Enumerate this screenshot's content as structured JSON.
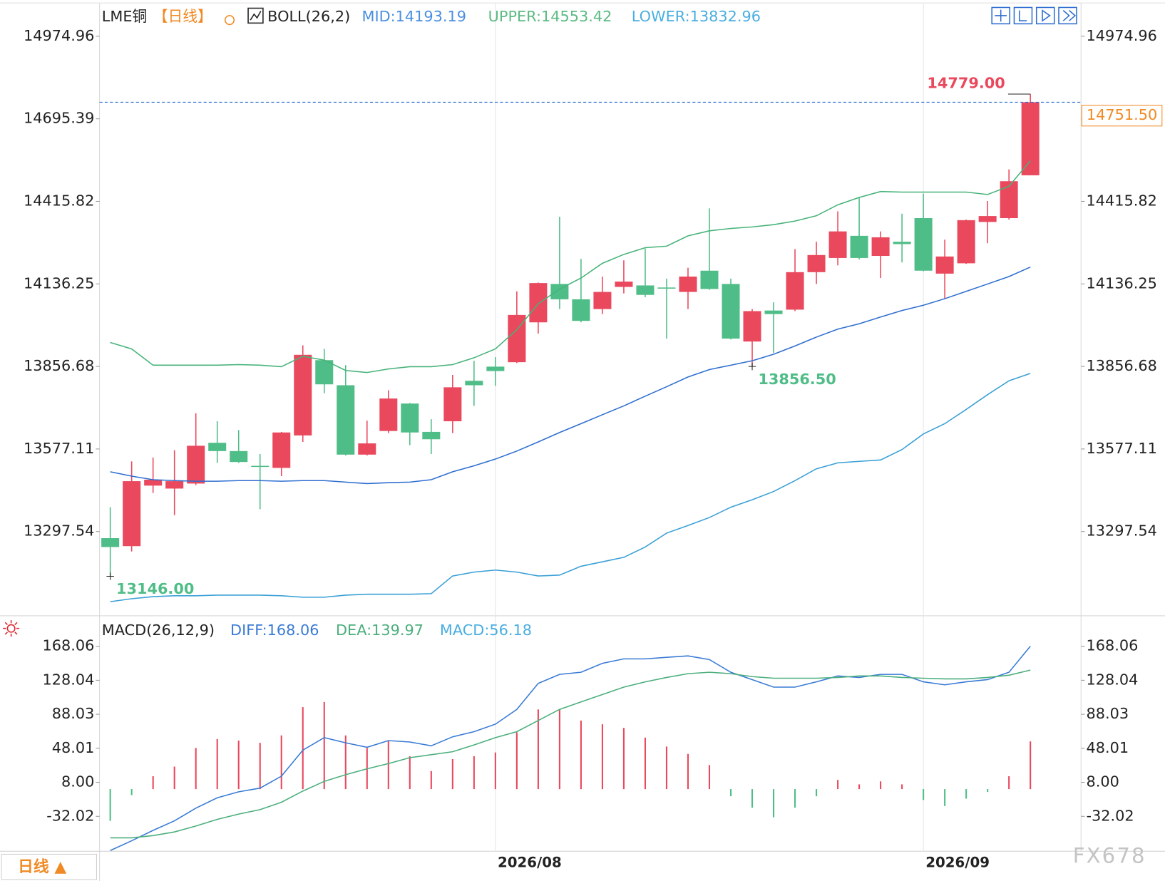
{
  "chart_data": [
    {
      "type": "candlestick",
      "title": "LME铜",
      "period": "【日线】",
      "indicator": "BOLL(26,2)",
      "categories": [
        null,
        null,
        null,
        null,
        null,
        null,
        null,
        null,
        null,
        null,
        null,
        null,
        null,
        null,
        null,
        null,
        null,
        null,
        "2026/08",
        null,
        null,
        null,
        null,
        null,
        null,
        null,
        null,
        null,
        null,
        null,
        null,
        null,
        null,
        null,
        null,
        null,
        null,
        null,
        "2026/09",
        null,
        null,
        null,
        null,
        null
      ],
      "open": [
        13275,
        13248,
        13453,
        13443,
        13460,
        13598,
        13570,
        13520,
        13513,
        13623,
        13878,
        13793,
        13558,
        13638,
        13731,
        13635,
        13671,
        13808,
        13856,
        13871,
        14006,
        14136,
        14084,
        14051,
        14126,
        14131,
        14124,
        14109,
        14181,
        14136,
        13941,
        14046,
        14049,
        14176,
        14224,
        14299,
        14231,
        14279,
        14359,
        14171,
        14206,
        14346,
        14359,
        14504
      ],
      "close": [
        13245,
        13468,
        13473,
        13468,
        13588,
        13570,
        13533,
        13518,
        13633,
        13896,
        13796,
        13558,
        13596,
        13748,
        13633,
        13610,
        13786,
        13793,
        13841,
        14031,
        14139,
        14084,
        14011,
        14109,
        14144,
        14099,
        14121,
        14161,
        14119,
        13951,
        14044,
        14034,
        14176,
        14234,
        14314,
        14224,
        14294,
        14271,
        14181,
        14229,
        14352,
        14366,
        14484,
        14751.5
      ],
      "high": [
        13380,
        13535,
        13548,
        13573,
        13698,
        13671,
        13641,
        13560,
        13635,
        13928,
        13916,
        13861,
        13673,
        13776,
        13733,
        13678,
        13828,
        13876,
        13888,
        14111,
        14141,
        14364,
        14221,
        14161,
        14216,
        14256,
        14154,
        14191,
        14392,
        14154,
        14051,
        14074,
        14254,
        14279,
        14382,
        14429,
        14314,
        14374,
        14442,
        14286,
        14354,
        14417,
        14524,
        14779
      ],
      "low": [
        13146,
        13230,
        13428,
        13353,
        13455,
        13530,
        13530,
        13373,
        13485,
        13601,
        13766,
        13555,
        13555,
        13631,
        13590,
        13560,
        13631,
        13723,
        13791,
        13868,
        13968,
        14051,
        14006,
        14034,
        14104,
        14091,
        13951,
        14051,
        14116,
        13948,
        13856.5,
        13903,
        14044,
        14136,
        14199,
        14219,
        14156,
        14209,
        14179,
        14086,
        14204,
        14274,
        14354,
        14504
      ],
      "up_color": "#e9485d",
      "down_color": "#4fbd87",
      "series": [
        {
          "name": "MID:14193.19",
          "color": "#2f6fd0",
          "label_color": "#4a8fe0",
          "values": [
            13500,
            13485,
            13473,
            13470,
            13468,
            13468,
            13470,
            13470,
            13468,
            13470,
            13470,
            13465,
            13460,
            13463,
            13465,
            13473,
            13500,
            13520,
            13543,
            13570,
            13601,
            13633,
            13663,
            13693,
            13723,
            13756,
            13788,
            13821,
            13846,
            13861,
            13876,
            13898,
            13926,
            13956,
            13983,
            14001,
            14024,
            14046,
            14064,
            14086,
            14111,
            14136,
            14161,
            14193.19
          ]
        },
        {
          "name": "UPPER:14553.42",
          "color": "#47b37a",
          "label_color": "#5cbb82",
          "values": [
            13938,
            13916,
            13861,
            13861,
            13861,
            13861,
            13863,
            13861,
            13856,
            13891,
            13878,
            13843,
            13836,
            13848,
            13856,
            13856,
            13863,
            13886,
            13916,
            13981,
            14069,
            14119,
            14156,
            14206,
            14236,
            14259,
            14264,
            14299,
            14316,
            14324,
            14329,
            14337,
            14349,
            14367,
            14404,
            14429,
            14449,
            14447,
            14447,
            14447,
            14447,
            14439,
            14467,
            14553.42
          ]
        },
        {
          "name": "LOWER:13832.96",
          "color": "#3aa0d6",
          "label_color": "#4aaee0",
          "values": [
            13060,
            13070,
            13077,
            13080,
            13080,
            13082,
            13082,
            13082,
            13080,
            13075,
            13075,
            13082,
            13085,
            13085,
            13085,
            13087,
            13147,
            13160,
            13167,
            13160,
            13147,
            13150,
            13180,
            13195,
            13210,
            13245,
            13292,
            13318,
            13345,
            13380,
            13405,
            13433,
            13470,
            13510,
            13530,
            13535,
            13540,
            13575,
            13628,
            13663,
            13711,
            13761,
            13808,
            13832.96
          ]
        }
      ],
      "annotations": [
        {
          "label": "14779.00",
          "value": 14779
        },
        {
          "label": "13856.50",
          "value": 13856.5
        },
        {
          "label": "13146.00",
          "value": 13146
        }
      ],
      "last_price": {
        "label": "14751.50",
        "value": 14751.5,
        "color": "#f08a24"
      },
      "ylim": [
        13014.6,
        15087.6
      ],
      "yticks": [
        14974.96,
        14695.39,
        14415.82,
        14136.25,
        13856.68,
        13577.11,
        13297.54
      ],
      "period_tab": "日线 ▲",
      "watermark": "FX678"
    },
    {
      "type": "bar",
      "title": "MACD(26,12,9)",
      "series": [
        {
          "name": "DIFF:168.06",
          "color": "#3a7bd5",
          "values": [
            -72.2,
            -60.8,
            -48.6,
            -37.3,
            -22.4,
            -10.2,
            -3.2,
            1.2,
            15.2,
            45.8,
            60.6,
            54.5,
            49.2,
            57.1,
            55.4,
            51,
            61.5,
            67.6,
            76.4,
            93.8,
            124.4,
            134.9,
            137.5,
            148,
            153.2,
            153.2,
            155,
            156.7,
            152.4,
            137.5,
            128.8,
            120,
            120,
            126.2,
            133.1,
            131.4,
            134.9,
            134.9,
            126.2,
            122.7,
            126.2,
            128.8,
            137.5,
            168.06
          ]
        },
        {
          "name": "DEA:139.97",
          "color": "#4caf7d",
          "values": [
            -57.3,
            -57.3,
            -54.7,
            -50.4,
            -43.4,
            -35.5,
            -29.4,
            -24.2,
            -15.4,
            -2.3,
            9.1,
            17,
            23.9,
            30.1,
            37,
            40.5,
            44,
            51.9,
            60.6,
            67.6,
            80.7,
            93.8,
            102.6,
            111.3,
            120,
            126.2,
            131.4,
            135.8,
            137.5,
            135.8,
            132.3,
            130.5,
            130.5,
            130.5,
            131.4,
            133.1,
            133.1,
            131.4,
            130.5,
            129.7,
            129.7,
            131.4,
            134,
            139.97
          ]
        }
      ],
      "histogram": {
        "name": "MACD:56.18",
        "color": "#4aaee0",
        "up_color": "#e9485d",
        "down_color": "#4fbd87",
        "values": [
          -37.3,
          -7,
          15.2,
          26.5,
          48.4,
          58.9,
          57.1,
          54.5,
          63.2,
          96.4,
          102.5,
          63.2,
          48.4,
          56.2,
          38.7,
          21.3,
          35.3,
          38.7,
          43.1,
          66.7,
          93.8,
          93.8,
          80.7,
          76.3,
          72,
          60.6,
          50.1,
          41.4,
          28.3,
          -8.4,
          -21.8,
          -33.2,
          -21.8,
          -8.4,
          10.8,
          5.6,
          9.1,
          5.6,
          -12.8,
          -19.9,
          -11.2,
          -3.4,
          15.2,
          56.18
        ]
      },
      "ylim": [
        -72.24,
        175.05
      ],
      "yticks": [
        168.06,
        128.04,
        88.03,
        48.01,
        {
          "value": 8,
          "label": "8.00"
        },
        -32.02
      ]
    }
  ]
}
